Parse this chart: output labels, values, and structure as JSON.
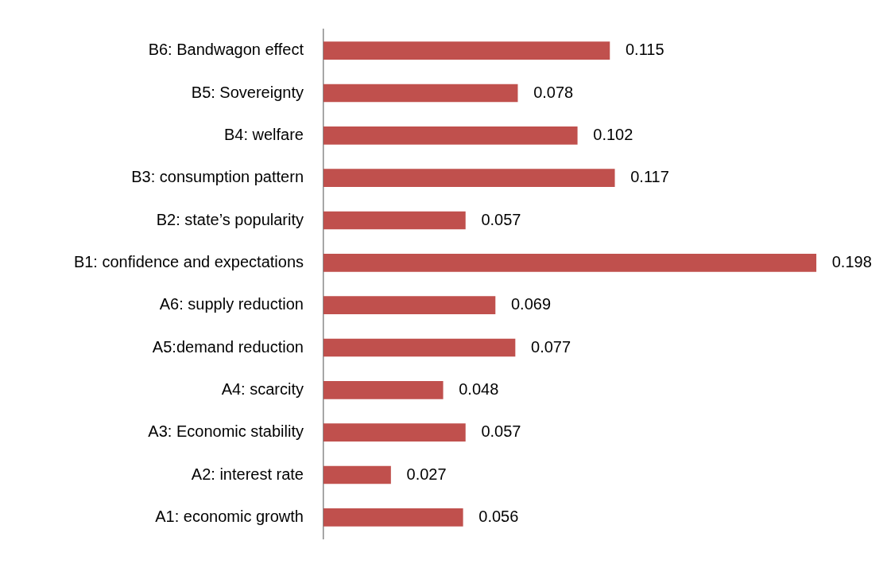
{
  "chart_data": {
    "type": "bar",
    "orientation": "horizontal",
    "categories": [
      "B6: Bandwagon effect",
      "B5: Sovereignty",
      "B4: welfare",
      "B3: consumption pattern",
      "B2: state’s popularity",
      "B1: confidence and expectations",
      "A6: supply reduction",
      "A5:demand reduction",
      "A4: scarcity",
      "A3: Economic stability",
      "A2: interest rate",
      "A1: economic growth"
    ],
    "values": [
      0.115,
      0.078,
      0.102,
      0.117,
      0.057,
      0.198,
      0.069,
      0.077,
      0.048,
      0.057,
      0.027,
      0.056
    ],
    "color": "#c0504d",
    "data_labels": true,
    "tick_labels": "y"
  }
}
